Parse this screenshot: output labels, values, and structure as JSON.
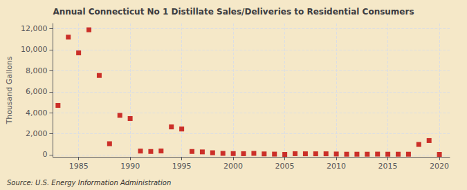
{
  "chart_data": {
    "type": "scatter",
    "title": "Annual Connecticut No 1 Distillate Sales/Deliveries to Residential Consumers",
    "ylabel": "Thousand Gallons",
    "source": "Source: U.S. Energy Information Administration",
    "background_color": "#f5e8c8",
    "color": "#c00000",
    "marker": "square",
    "grid": true,
    "xlim": [
      1982.5,
      2021
    ],
    "xticks": [
      1985,
      1990,
      1995,
      2000,
      2005,
      2010,
      2015,
      2020
    ],
    "ylim": [
      -200,
      12500
    ],
    "yticks": [
      0,
      {
        "value": 2000,
        "label": "2,000"
      },
      {
        "value": 4000,
        "label": "4,000"
      },
      {
        "value": 6000,
        "label": "6,000"
      },
      {
        "value": 8000,
        "label": "8,000"
      },
      {
        "value": 10000,
        "label": "10,000"
      },
      {
        "value": 12000,
        "label": "12,000"
      }
    ],
    "x": [
      1983,
      1984,
      1985,
      1986,
      1987,
      1988,
      1989,
      1990,
      1991,
      1992,
      1993,
      1994,
      1995,
      1996,
      1997,
      1998,
      1999,
      2000,
      2001,
      2002,
      2003,
      2004,
      2005,
      2006,
      2007,
      2008,
      2009,
      2010,
      2011,
      2012,
      2013,
      2014,
      2015,
      2016,
      2017,
      2018,
      2019,
      2020
    ],
    "values": [
      4700,
      11200,
      9700,
      11900,
      7550,
      1050,
      3750,
      3450,
      350,
      310,
      360,
      2650,
      2450,
      310,
      270,
      190,
      130,
      110,
      100,
      130,
      80,
      60,
      30,
      100,
      90,
      90,
      90,
      70,
      50,
      50,
      50,
      60,
      50,
      50,
      50,
      980,
      1350,
      30
    ]
  }
}
